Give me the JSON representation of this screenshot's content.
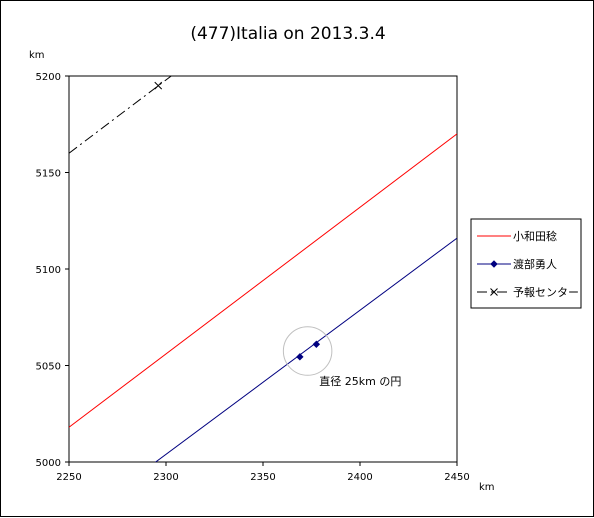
{
  "chart_data": {
    "type": "line",
    "title": "(477)Italia on 2013.3.4",
    "xlabel": "km",
    "ylabel": "km",
    "xlim": [
      2250,
      2450
    ],
    "ylim": [
      5000,
      5200
    ],
    "xticks": [
      2250,
      2300,
      2350,
      2400,
      2450
    ],
    "yticks": [
      5000,
      5050,
      5100,
      5150,
      5200
    ],
    "xtick_labels": [
      "2250",
      "2300",
      "2350",
      "2400",
      "2450"
    ],
    "ytick_labels": [
      "5000",
      "5050",
      "5100",
      "5150",
      "5200"
    ],
    "grid": false,
    "legend_position": "right",
    "series": [
      {
        "name": "小和田稔",
        "color": "#ff0000",
        "style": "solid",
        "marker": "none",
        "x": [
          2250,
          2450
        ],
        "y": [
          5018,
          5170
        ]
      },
      {
        "name": "渡部勇人",
        "color": "#000080",
        "style": "solid",
        "marker": "diamond",
        "x": [
          2292,
          2450
        ],
        "y": [
          4998,
          5116
        ],
        "marker_points": [
          [
            2369,
            5054.5
          ],
          [
            2377.5,
            5061
          ]
        ]
      },
      {
        "name": "予報センター",
        "color": "#000000",
        "style": "dashdot",
        "marker": "x",
        "x": [
          2250,
          2304
        ],
        "y": [
          5160,
          5201
        ],
        "marker_points": [
          [
            2296,
            5195
          ]
        ]
      }
    ],
    "annotations": [
      {
        "text": "直径 25km の円",
        "x": 2379,
        "y": 5040
      }
    ],
    "circle": {
      "center": [
        2373,
        5057.5
      ],
      "diameter": 25,
      "color": "#c0c0c0"
    }
  }
}
